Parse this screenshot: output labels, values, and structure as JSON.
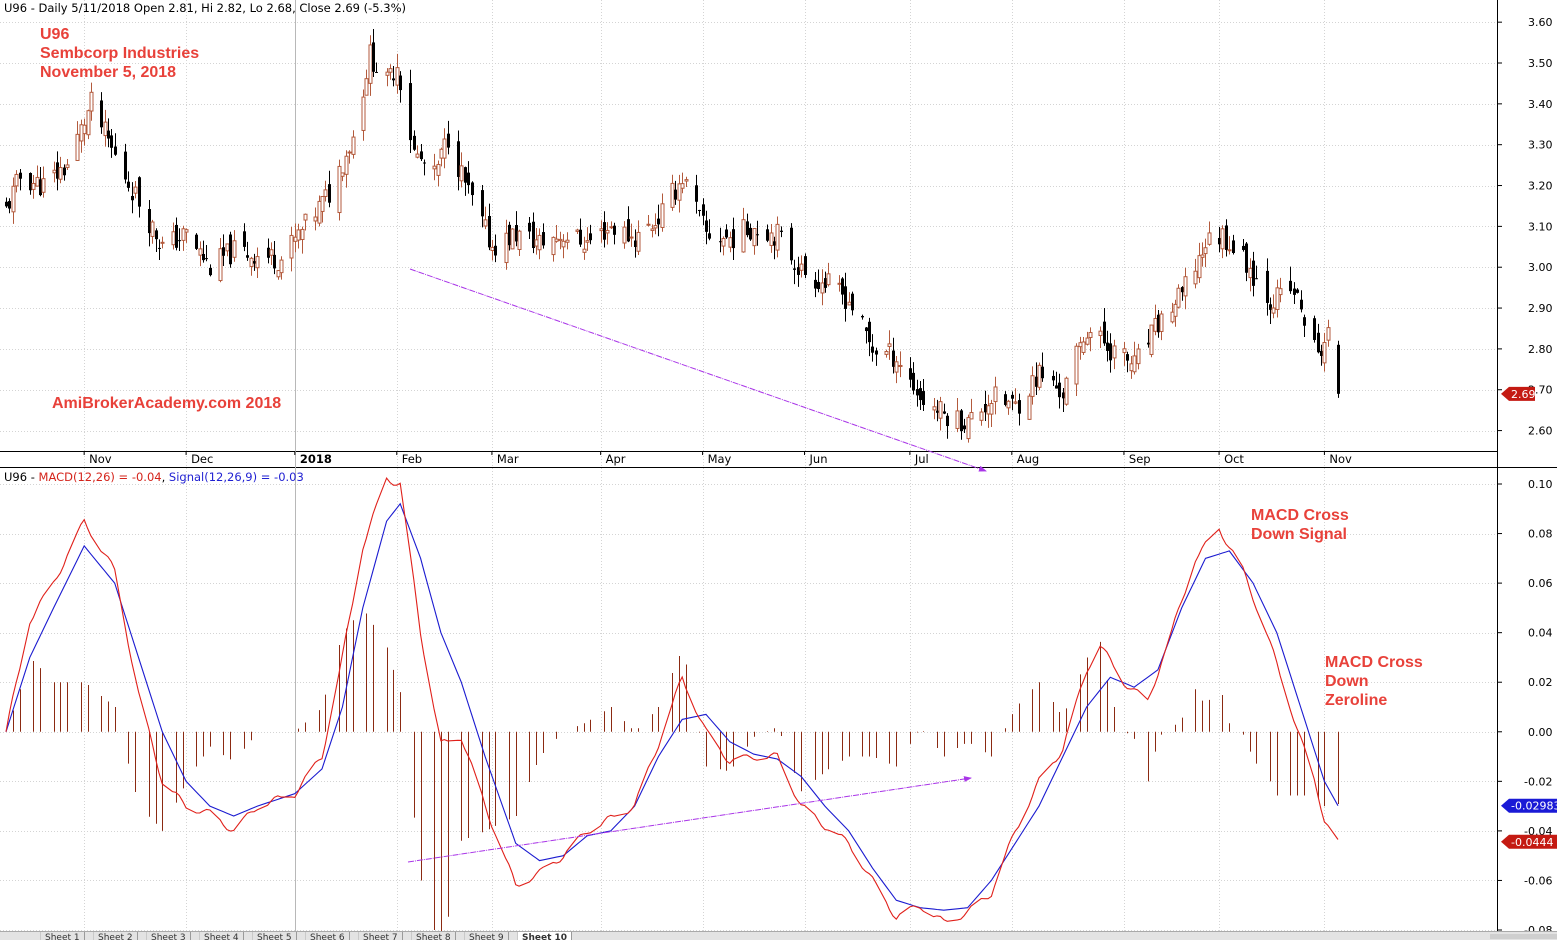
{
  "header_price": {
    "symbol": "U96",
    "text": "U96 - Daily 5/11/2018 Open 2.81, Hi 2.82, Lo 2.68, Close 2.69 (-5.3%)"
  },
  "header_macd": {
    "prefix": "U96 - ",
    "macd_label": "MACD(12,26) = -0.04",
    "separator": ", ",
    "signal_label": "Signal(12,26,9) = -0.03"
  },
  "annotations": {
    "title_lines": [
      "U96",
      "Sembcorp Industries",
      "November 5, 2018"
    ],
    "watermark": "AmiBrokerAcademy.com  2018",
    "cross_signal": [
      "MACD Cross",
      "Down Signal"
    ],
    "cross_zero": [
      "MACD Cross",
      "Down",
      "Zeroline"
    ]
  },
  "price_badge": "2.69",
  "macd_badges": {
    "signal": "-0.02983",
    "macd": "-0.0444"
  },
  "colors": {
    "up_candle": "#b35a3c",
    "down_candle": "#000000",
    "macd_line": "#e0201a",
    "signal_line": "#1b1bd0",
    "histogram": "#8b2a12",
    "trendline": "#a935e8",
    "annotation": "#e8413a",
    "badge_red": "#c41a12",
    "badge_blue": "#1a1ad6"
  },
  "sheet_tabs": [
    "Sheet 1",
    "Sheet 2",
    "Sheet 3",
    "Sheet 4",
    "Sheet 5",
    "Sheet 6",
    "Sheet 7",
    "Sheet 8",
    "Sheet 9",
    "Sheet 10"
  ],
  "chart_data": [
    {
      "type": "candlestick",
      "symbol": "U96",
      "ylim": [
        2.55,
        3.62
      ],
      "yticks": [
        2.6,
        2.7,
        2.8,
        2.9,
        3.0,
        3.1,
        3.2,
        3.3,
        3.4,
        3.5,
        3.6
      ],
      "x_labels": [
        {
          "label": "Nov",
          "date": "2017-11-01"
        },
        {
          "label": "Dec",
          "date": "2017-12-01"
        },
        {
          "label": "2018",
          "date": "2018-01-02",
          "bold": true
        },
        {
          "label": "Feb",
          "date": "2018-02-01"
        },
        {
          "label": "Mar",
          "date": "2018-03-01"
        },
        {
          "label": "Apr",
          "date": "2018-04-02"
        },
        {
          "label": "May",
          "date": "2018-05-02"
        },
        {
          "label": "Jun",
          "date": "2018-06-01"
        },
        {
          "label": "Jul",
          "date": "2018-07-02"
        },
        {
          "label": "Aug",
          "date": "2018-08-01"
        },
        {
          "label": "Sep",
          "date": "2018-09-03"
        },
        {
          "label": "Oct",
          "date": "2018-10-01"
        },
        {
          "label": "Nov",
          "date": "2018-11-01"
        }
      ],
      "x_range": [
        "2017-10-09",
        "2018-11-05"
      ],
      "close_anchors": [
        [
          "2017-10-09",
          3.14
        ],
        [
          "2017-10-13",
          3.22
        ],
        [
          "2017-10-20",
          3.2
        ],
        [
          "2017-10-27",
          3.25
        ],
        [
          "2017-11-03",
          3.4
        ],
        [
          "2017-11-10",
          3.27
        ],
        [
          "2017-11-17",
          3.16
        ],
        [
          "2017-11-24",
          3.05
        ],
        [
          "2017-12-01",
          3.08
        ],
        [
          "2017-12-08",
          3.0
        ],
        [
          "2017-12-15",
          3.04
        ],
        [
          "2017-12-22",
          3.03
        ],
        [
          "2017-12-29",
          3.02
        ],
        [
          "2018-01-05",
          3.1
        ],
        [
          "2018-01-12",
          3.18
        ],
        [
          "2018-01-19",
          3.32
        ],
        [
          "2018-01-24",
          3.52
        ],
        [
          "2018-01-29",
          3.45
        ],
        [
          "2018-02-01",
          3.5
        ],
        [
          "2018-02-06",
          3.28
        ],
        [
          "2018-02-12",
          3.22
        ],
        [
          "2018-02-16",
          3.32
        ],
        [
          "2018-02-22",
          3.18
        ],
        [
          "2018-03-01",
          3.05
        ],
        [
          "2018-03-08",
          3.08
        ],
        [
          "2018-03-15",
          3.06
        ],
        [
          "2018-03-22",
          3.08
        ],
        [
          "2018-03-29",
          3.06
        ],
        [
          "2018-04-05",
          3.1
        ],
        [
          "2018-04-12",
          3.07
        ],
        [
          "2018-04-19",
          3.12
        ],
        [
          "2018-04-26",
          3.22
        ],
        [
          "2018-05-03",
          3.08
        ],
        [
          "2018-05-10",
          3.07
        ],
        [
          "2018-05-17",
          3.1
        ],
        [
          "2018-05-24",
          3.08
        ],
        [
          "2018-05-31",
          2.99
        ],
        [
          "2018-06-07",
          2.96
        ],
        [
          "2018-06-14",
          2.92
        ],
        [
          "2018-06-21",
          2.8
        ],
        [
          "2018-06-28",
          2.78
        ],
        [
          "2018-07-05",
          2.68
        ],
        [
          "2018-07-12",
          2.64
        ],
        [
          "2018-07-19",
          2.62
        ],
        [
          "2018-07-26",
          2.68
        ],
        [
          "2018-08-02",
          2.66
        ],
        [
          "2018-08-09",
          2.74
        ],
        [
          "2018-08-16",
          2.69
        ],
        [
          "2018-08-23",
          2.85
        ],
        [
          "2018-08-30",
          2.8
        ],
        [
          "2018-09-06",
          2.76
        ],
        [
          "2018-09-13",
          2.86
        ],
        [
          "2018-09-20",
          2.93
        ],
        [
          "2018-09-27",
          3.06
        ],
        [
          "2018-10-02",
          3.08
        ],
        [
          "2018-10-09",
          3.01
        ],
        [
          "2018-10-16",
          2.92
        ],
        [
          "2018-10-23",
          2.94
        ],
        [
          "2018-10-30",
          2.78
        ],
        [
          "2018-11-02",
          2.84
        ],
        [
          "2018-11-05",
          2.69
        ]
      ],
      "last_bar": {
        "date": "2018-11-05",
        "open": 2.81,
        "high": 2.82,
        "low": 2.68,
        "close": 2.69
      }
    },
    {
      "type": "line",
      "ylim": [
        -0.08,
        0.1
      ],
      "yticks": [
        -0.08,
        -0.06,
        -0.04,
        -0.02,
        0.0,
        0.02,
        0.04,
        0.06,
        0.08,
        0.1
      ],
      "series": [
        {
          "name": "MACD(12,26)",
          "points": [
            [
              "2017-10-09",
              0.0
            ],
            [
              "2017-10-16",
              0.045
            ],
            [
              "2017-10-23",
              0.06
            ],
            [
              "2017-11-01",
              0.085
            ],
            [
              "2017-11-10",
              0.065
            ],
            [
              "2017-11-17",
              0.015
            ],
            [
              "2017-11-24",
              -0.02
            ],
            [
              "2017-12-01",
              -0.03
            ],
            [
              "2017-12-08",
              -0.033
            ],
            [
              "2017-12-15",
              -0.04
            ],
            [
              "2017-12-22",
              -0.03
            ],
            [
              "2018-01-02",
              -0.025
            ],
            [
              "2018-01-10",
              -0.01
            ],
            [
              "2018-01-16",
              0.03
            ],
            [
              "2018-01-22",
              0.075
            ],
            [
              "2018-01-29",
              0.102
            ],
            [
              "2018-02-02",
              0.1
            ],
            [
              "2018-02-08",
              0.04
            ],
            [
              "2018-02-14",
              -0.005
            ],
            [
              "2018-02-20",
              -0.002
            ],
            [
              "2018-02-27",
              -0.03
            ],
            [
              "2018-03-08",
              -0.062
            ],
            [
              "2018-03-15",
              -0.057
            ],
            [
              "2018-03-22",
              -0.05
            ],
            [
              "2018-03-29",
              -0.04
            ],
            [
              "2018-04-05",
              -0.035
            ],
            [
              "2018-04-12",
              -0.03
            ],
            [
              "2018-04-19",
              -0.005
            ],
            [
              "2018-04-26",
              0.022
            ],
            [
              "2018-05-03",
              0.0
            ],
            [
              "2018-05-10",
              -0.012
            ],
            [
              "2018-05-17",
              -0.01
            ],
            [
              "2018-05-24",
              -0.01
            ],
            [
              "2018-05-31",
              -0.03
            ],
            [
              "2018-06-07",
              -0.038
            ],
            [
              "2018-06-14",
              -0.045
            ],
            [
              "2018-06-21",
              -0.06
            ],
            [
              "2018-06-28",
              -0.075
            ],
            [
              "2018-07-05",
              -0.07
            ],
            [
              "2018-07-12",
              -0.077
            ],
            [
              "2018-07-19",
              -0.073
            ],
            [
              "2018-07-26",
              -0.065
            ],
            [
              "2018-08-02",
              -0.04
            ],
            [
              "2018-08-09",
              -0.02
            ],
            [
              "2018-08-16",
              -0.007
            ],
            [
              "2018-08-23",
              0.025
            ],
            [
              "2018-08-27",
              0.035
            ],
            [
              "2018-09-03",
              0.02
            ],
            [
              "2018-09-10",
              0.012
            ],
            [
              "2018-09-17",
              0.04
            ],
            [
              "2018-09-24",
              0.07
            ],
            [
              "2018-10-01",
              0.082
            ],
            [
              "2018-10-08",
              0.065
            ],
            [
              "2018-10-15",
              0.04
            ],
            [
              "2018-10-22",
              0.01
            ],
            [
              "2018-10-29",
              -0.02
            ],
            [
              "2018-11-01",
              -0.035
            ],
            [
              "2018-11-05",
              -0.0444
            ]
          ]
        },
        {
          "name": "Signal(12,26,9)",
          "points": [
            [
              "2017-10-09",
              0.0
            ],
            [
              "2017-10-16",
              0.03
            ],
            [
              "2017-10-23",
              0.05
            ],
            [
              "2017-11-01",
              0.075
            ],
            [
              "2017-11-10",
              0.06
            ],
            [
              "2017-11-17",
              0.03
            ],
            [
              "2017-11-24",
              0.0
            ],
            [
              "2017-12-01",
              -0.02
            ],
            [
              "2017-12-08",
              -0.03
            ],
            [
              "2017-12-15",
              -0.034
            ],
            [
              "2017-12-22",
              -0.03
            ],
            [
              "2018-01-02",
              -0.025
            ],
            [
              "2018-01-10",
              -0.015
            ],
            [
              "2018-01-16",
              0.01
            ],
            [
              "2018-01-22",
              0.05
            ],
            [
              "2018-01-29",
              0.085
            ],
            [
              "2018-02-02",
              0.092
            ],
            [
              "2018-02-08",
              0.07
            ],
            [
              "2018-02-14",
              0.04
            ],
            [
              "2018-02-20",
              0.02
            ],
            [
              "2018-02-27",
              -0.01
            ],
            [
              "2018-03-08",
              -0.045
            ],
            [
              "2018-03-15",
              -0.052
            ],
            [
              "2018-03-22",
              -0.05
            ],
            [
              "2018-03-29",
              -0.042
            ],
            [
              "2018-04-05",
              -0.04
            ],
            [
              "2018-04-12",
              -0.03
            ],
            [
              "2018-04-19",
              -0.01
            ],
            [
              "2018-04-26",
              0.005
            ],
            [
              "2018-05-03",
              0.007
            ],
            [
              "2018-05-10",
              -0.004
            ],
            [
              "2018-05-17",
              -0.009
            ],
            [
              "2018-05-24",
              -0.011
            ],
            [
              "2018-05-31",
              -0.018
            ],
            [
              "2018-06-07",
              -0.03
            ],
            [
              "2018-06-14",
              -0.04
            ],
            [
              "2018-06-21",
              -0.055
            ],
            [
              "2018-06-28",
              -0.068
            ],
            [
              "2018-07-05",
              -0.071
            ],
            [
              "2018-07-12",
              -0.072
            ],
            [
              "2018-07-19",
              -0.071
            ],
            [
              "2018-07-26",
              -0.06
            ],
            [
              "2018-08-02",
              -0.045
            ],
            [
              "2018-08-09",
              -0.03
            ],
            [
              "2018-08-16",
              -0.01
            ],
            [
              "2018-08-23",
              0.01
            ],
            [
              "2018-08-30",
              0.022
            ],
            [
              "2018-09-06",
              0.018
            ],
            [
              "2018-09-13",
              0.025
            ],
            [
              "2018-09-20",
              0.05
            ],
            [
              "2018-09-27",
              0.07
            ],
            [
              "2018-10-04",
              0.073
            ],
            [
              "2018-10-11",
              0.06
            ],
            [
              "2018-10-18",
              0.04
            ],
            [
              "2018-10-25",
              0.01
            ],
            [
              "2018-11-01",
              -0.02
            ],
            [
              "2018-11-05",
              -0.02983
            ]
          ]
        }
      ],
      "histogram": "MACD - Signal"
    }
  ]
}
